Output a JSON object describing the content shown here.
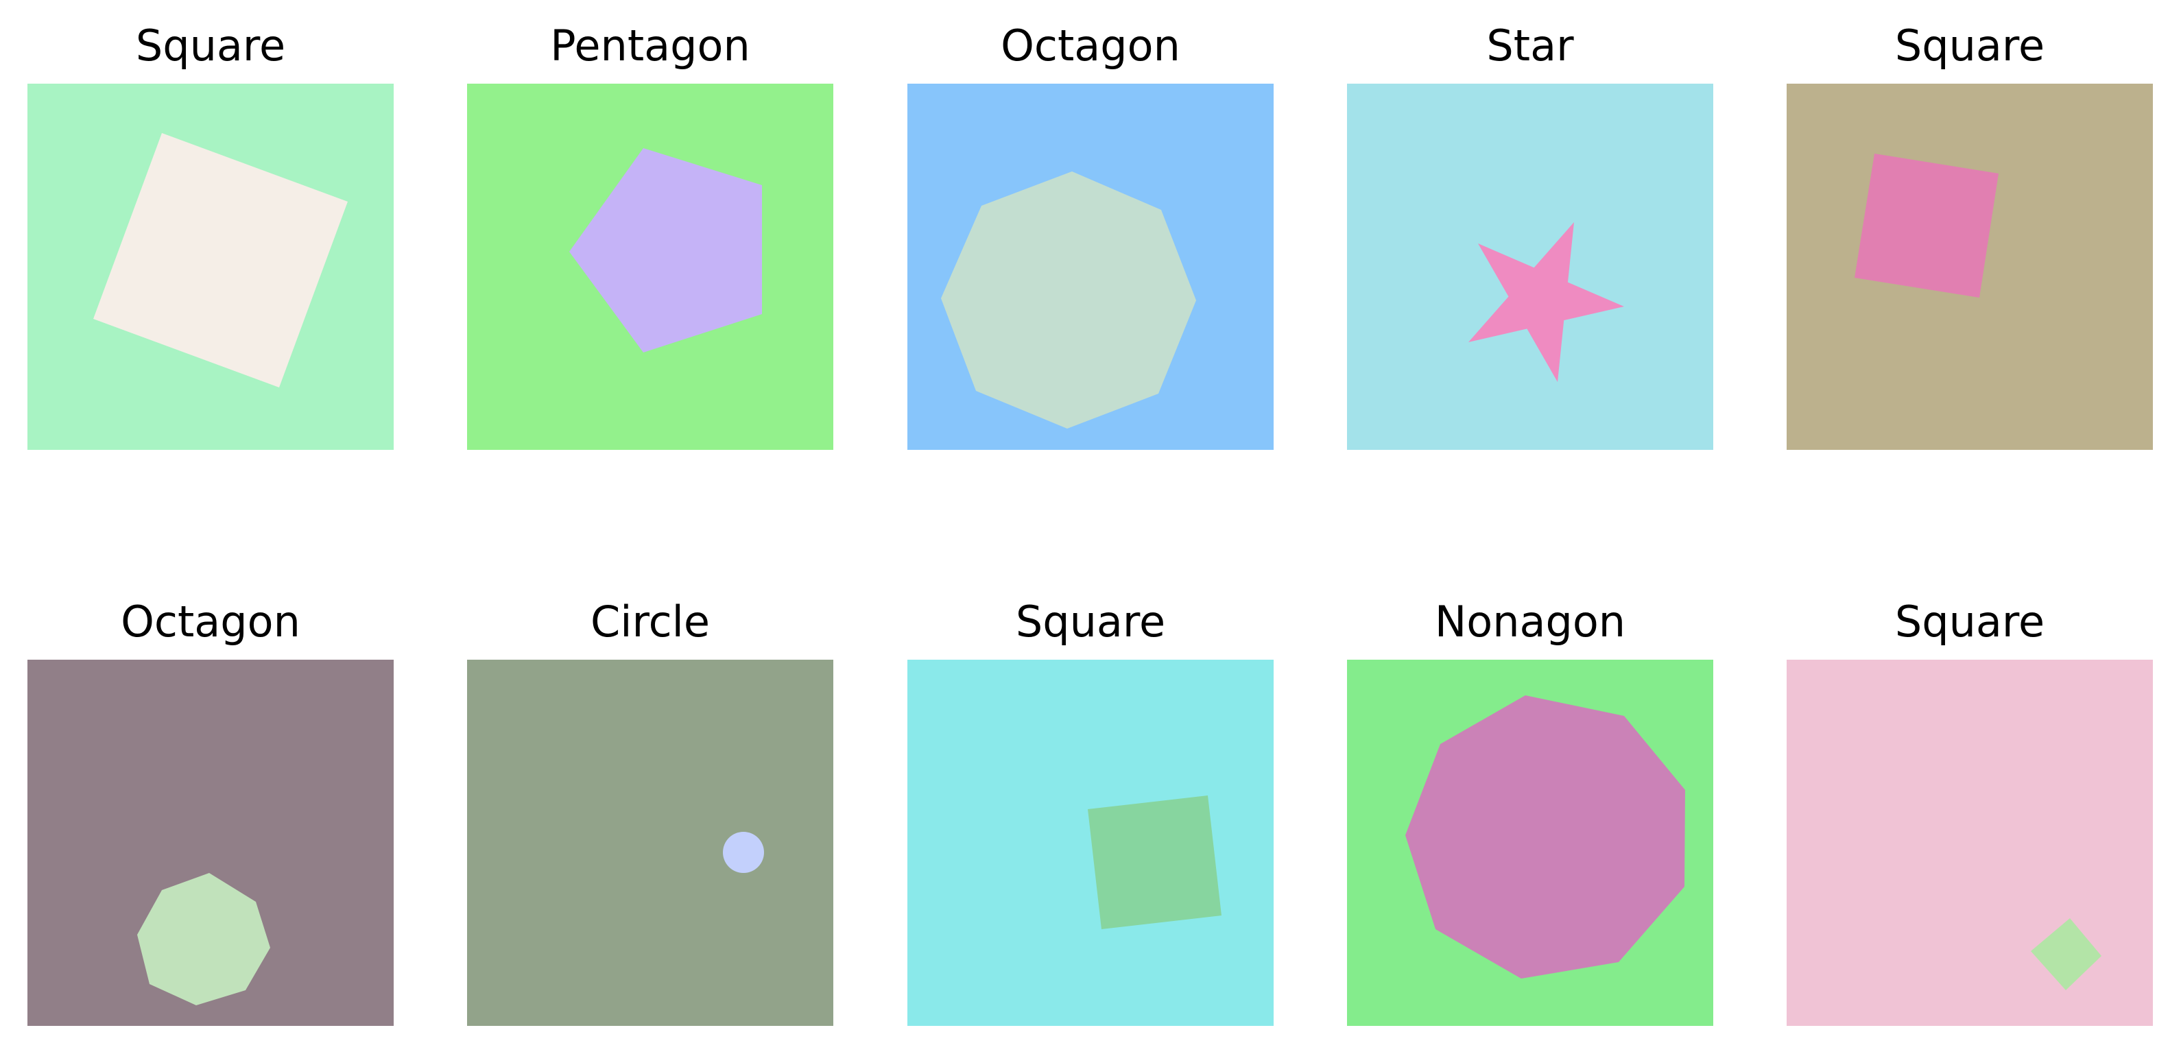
{
  "panels": [
    {
      "title": "Square",
      "shape": "square",
      "bg": "#a8f3c3",
      "fill": "#f5eee7"
    },
    {
      "title": "Pentagon",
      "shape": "pentagon",
      "bg": "#93f18c",
      "fill": "#c5b3f7"
    },
    {
      "title": "Octagon",
      "shape": "octagon",
      "bg": "#87c5fb",
      "fill": "#c3ded0"
    },
    {
      "title": "Star",
      "shape": "star",
      "bg": "#a3e2ea",
      "fill": "#ef8bc1"
    },
    {
      "title": "Square",
      "shape": "square",
      "bg": "#bcb18d",
      "fill": "#e17fb1"
    },
    {
      "title": "Octagon",
      "shape": "octagon",
      "bg": "#917f88",
      "fill": "#c1e2bb"
    },
    {
      "title": "Circle",
      "shape": "circle",
      "bg": "#92a38a",
      "fill": "#c3d0fc"
    },
    {
      "title": "Square",
      "shape": "square",
      "bg": "#8ae9ea",
      "fill": "#87d59f"
    },
    {
      "title": "Nonagon",
      "shape": "nonagon",
      "bg": "#84ec8c",
      "fill": "#cb82b7"
    },
    {
      "title": "Square",
      "shape": "square",
      "bg": "#f0c3d5",
      "fill": "#b3e4a7"
    }
  ]
}
